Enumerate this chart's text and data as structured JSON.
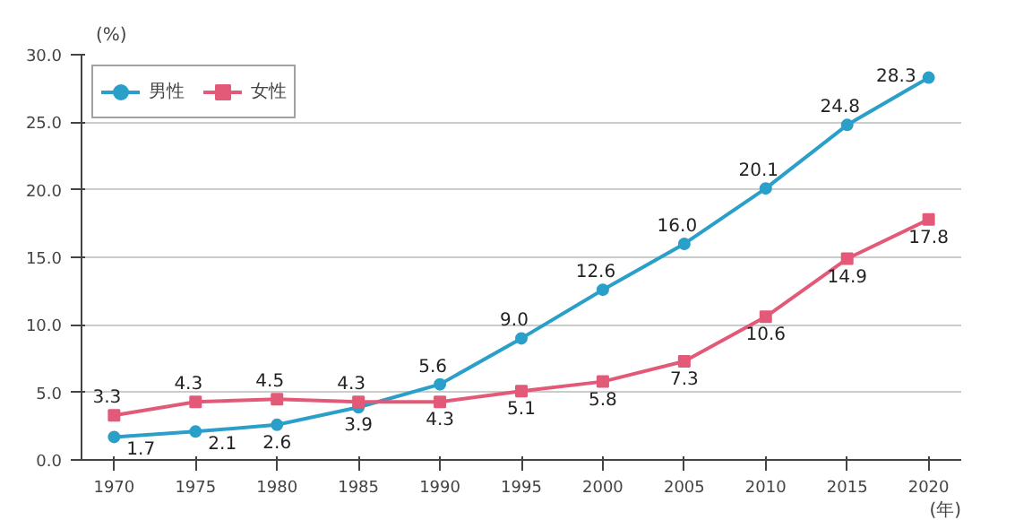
{
  "chart_data": {
    "type": "line",
    "xlabel": "(年)",
    "ylabel": "(%)",
    "x": [
      1970,
      1975,
      1980,
      1985,
      1990,
      1995,
      2000,
      2005,
      2010,
      2015,
      2020
    ],
    "series": [
      {
        "name": "男性",
        "color": "#2a9fc9",
        "marker": "circle",
        "values": [
          1.7,
          2.1,
          2.6,
          3.9,
          5.6,
          9.0,
          12.6,
          16.0,
          20.1,
          24.8,
          28.3
        ],
        "value_labels": [
          "1.7",
          "2.1",
          "2.6",
          "3.9",
          "5.6",
          "9.0",
          "12.6",
          "16.0",
          "20.1",
          "24.8",
          "28.3"
        ]
      },
      {
        "name": "女性",
        "color": "#e35a78",
        "marker": "square",
        "values": [
          3.3,
          4.3,
          4.5,
          4.3,
          4.3,
          5.1,
          5.8,
          7.3,
          10.6,
          14.9,
          17.8
        ],
        "value_labels": [
          "3.3",
          "4.3",
          "4.5",
          "4.3",
          "4.3",
          "5.1",
          "5.8",
          "7.3",
          "10.6",
          "14.9",
          "17.8"
        ]
      }
    ],
    "xlim": [
      1968,
      2022
    ],
    "xticks": [
      1970,
      1975,
      1980,
      1985,
      1990,
      1995,
      2000,
      2005,
      2010,
      2015,
      2020
    ],
    "ylim": [
      0,
      30
    ],
    "yticks": [
      {
        "value": 0,
        "label": "0.0"
      },
      {
        "value": 5,
        "label": "5.0"
      },
      {
        "value": 10,
        "label": "10.0"
      },
      {
        "value": 15,
        "label": "15.0"
      },
      {
        "value": 20,
        "label": "20.0"
      },
      {
        "value": 25,
        "label": "25.0"
      },
      {
        "value": 30,
        "label": "30.0"
      }
    ],
    "grid": "y",
    "legend": "top left",
    "line_style": "solid"
  }
}
